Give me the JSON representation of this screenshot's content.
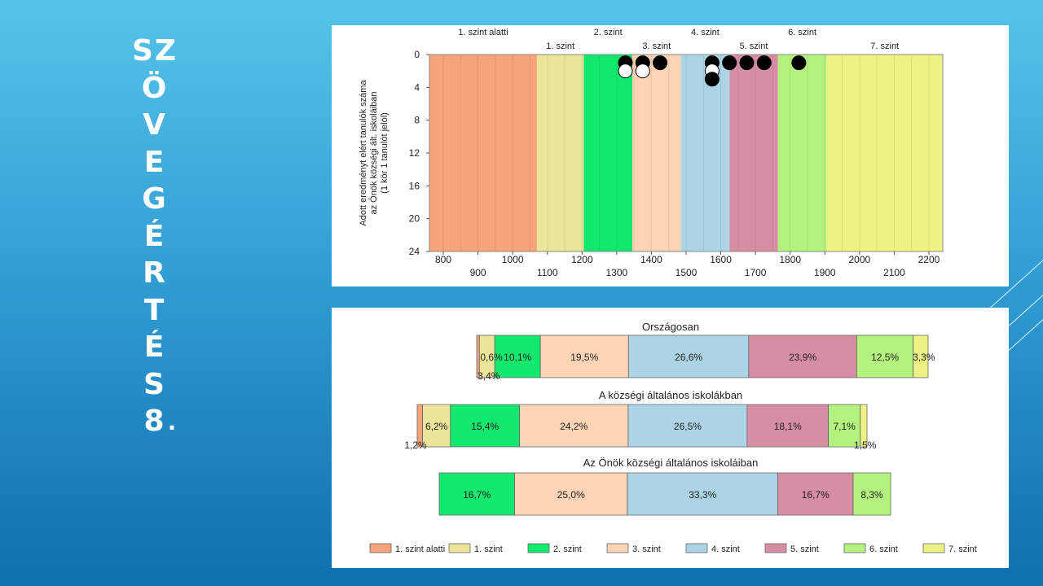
{
  "slide": {
    "title_chars": [
      "SZ",
      "Ö",
      "V",
      "E",
      "G",
      "É",
      "R",
      "T",
      "É",
      "S",
      "8",
      "."
    ]
  },
  "colors": {
    "level_below_1": "#f7a47c",
    "level_1": "#ece599",
    "level_2": "#13e86e",
    "level_3": "#fbd4b6",
    "level_4": "#add4e4",
    "level_5": "#d88ea2",
    "level_6": "#b3f27e",
    "level_7": "#eef183"
  },
  "chart_data": [
    {
      "type": "scatter",
      "ylabel_lines": [
        "Adott eredményt elért tanulók száma",
        "az Önök községi ált. iskoláiban",
        "(1 kör 1 tanulót jelöl)"
      ],
      "xlim": [
        760,
        2240
      ],
      "ylim": [
        0,
        24
      ],
      "y_inverted": true,
      "yticks": [
        0,
        4,
        8,
        12,
        16,
        20,
        24
      ],
      "xticks_row1": [
        800,
        1000,
        1200,
        1400,
        1600,
        1800,
        2000,
        2200
      ],
      "xticks_row2": [
        900,
        1100,
        1300,
        1500,
        1700,
        1900,
        2100
      ],
      "bands": [
        {
          "label": "1. szint alatti",
          "from": 760,
          "to": 1070,
          "color": "#f7a47c"
        },
        {
          "label": "1. szint",
          "from": 1070,
          "to": 1205,
          "color": "#ece599"
        },
        {
          "label": "2. szint",
          "from": 1205,
          "to": 1345,
          "color": "#13e86e"
        },
        {
          "label": "3. szint",
          "from": 1345,
          "to": 1485,
          "color": "#fbd4b6"
        },
        {
          "label": "4. szint",
          "from": 1485,
          "to": 1625,
          "color": "#add4e4"
        },
        {
          "label": "5. szint",
          "from": 1625,
          "to": 1765,
          "color": "#d88ea2"
        },
        {
          "label": "6. szint",
          "from": 1765,
          "to": 1905,
          "color": "#b3f27e"
        },
        {
          "label": "7. szint",
          "from": 1905,
          "to": 2240,
          "color": "#eef183"
        }
      ],
      "points": [
        {
          "x": 1325,
          "y": 1,
          "fill": "black"
        },
        {
          "x": 1325,
          "y": 2,
          "fill": "white"
        },
        {
          "x": 1375,
          "y": 1,
          "fill": "black"
        },
        {
          "x": 1375,
          "y": 2,
          "fill": "white"
        },
        {
          "x": 1425,
          "y": 1,
          "fill": "black"
        },
        {
          "x": 1575,
          "y": 1,
          "fill": "black"
        },
        {
          "x": 1575,
          "y": 2,
          "fill": "white"
        },
        {
          "x": 1575,
          "y": 3,
          "fill": "black"
        },
        {
          "x": 1625,
          "y": 1,
          "fill": "black"
        },
        {
          "x": 1675,
          "y": 1,
          "fill": "black"
        },
        {
          "x": 1725,
          "y": 1,
          "fill": "black"
        },
        {
          "x": 1825,
          "y": 1,
          "fill": "black"
        }
      ]
    },
    {
      "type": "bar",
      "orientation": "horizontal",
      "stacked": true,
      "legend": {
        "position": "bottom",
        "items": [
          {
            "label": "1. szint alatti",
            "color": "#f7a47c"
          },
          {
            "label": "1. szint",
            "color": "#ece599"
          },
          {
            "label": "2. szint",
            "color": "#13e86e"
          },
          {
            "label": "3. szint",
            "color": "#fbd4b6"
          },
          {
            "label": "4. szint",
            "color": "#add4e4"
          },
          {
            "label": "5. szint",
            "color": "#d88ea2"
          },
          {
            "label": "6. szint",
            "color": "#b3f27e"
          },
          {
            "label": "7. szint",
            "color": "#eef183"
          }
        ]
      },
      "rows": [
        {
          "title": "Országosan",
          "values": [
            0.6,
            3.4,
            10.1,
            19.5,
            26.6,
            23.9,
            12.5,
            3.3
          ],
          "labels": [
            "0,6%",
            "3,4%",
            "10,1%",
            "19,5%",
            "26,6%",
            "23,9%",
            "12,5%",
            "3,3%"
          ]
        },
        {
          "title": "A községi általános iskolákban",
          "values": [
            1.2,
            6.2,
            15.4,
            24.2,
            26.5,
            18.1,
            7.1,
            1.5
          ],
          "labels": [
            "1,2%",
            "6,2%",
            "15,4%",
            "24,2%",
            "26,5%",
            "18,1%",
            "7,1%",
            "1,5%"
          ]
        },
        {
          "title": "Az Önök községi általános iskoláiban",
          "values": [
            0,
            0,
            16.7,
            25.0,
            33.3,
            16.7,
            8.3,
            0
          ],
          "labels": [
            "",
            "",
            "16,7%",
            "25,0%",
            "33,3%",
            "16,7%",
            "8,3%",
            ""
          ]
        }
      ]
    }
  ]
}
